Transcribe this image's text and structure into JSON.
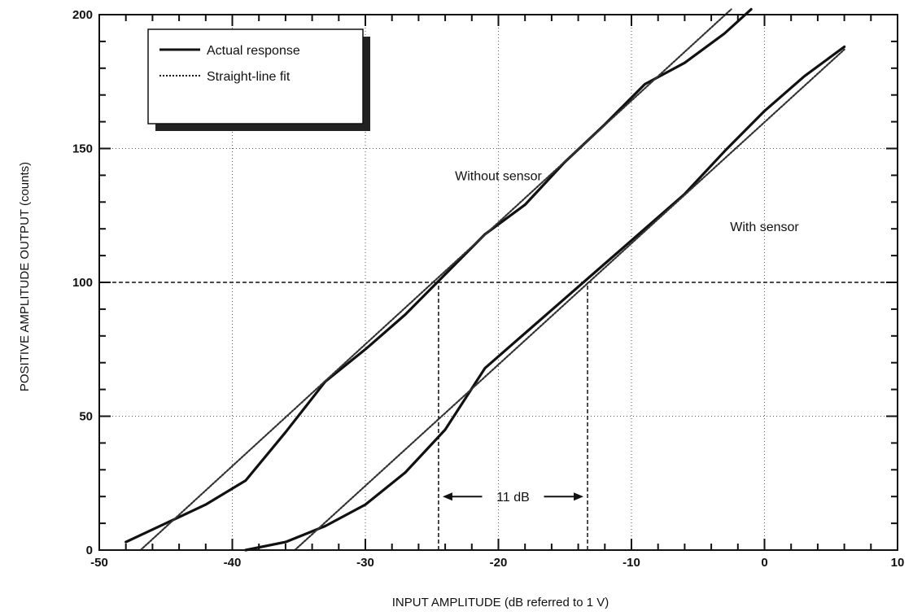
{
  "chart_data": {
    "type": "line",
    "xlabel": "INPUT AMPLITUDE (dB referred to 1 V)",
    "ylabel": "POSITIVE AMPLITUDE OUTPUT (counts)",
    "xlim": [
      -50,
      10
    ],
    "ylim": [
      0,
      200
    ],
    "xticks": [
      -50,
      -40,
      -30,
      -20,
      -10,
      0,
      10
    ],
    "yticks": [
      0,
      50,
      100,
      150,
      200
    ],
    "grid": true,
    "legend": {
      "placement": "top-left",
      "entries": [
        {
          "label": "Actual response",
          "style": "solid"
        },
        {
          "label": "Straight-line fit",
          "style": "dotted"
        }
      ]
    },
    "series": [
      {
        "style": "solid",
        "x": [
          -48,
          -45,
          -42,
          -39,
          -36,
          -33,
          -30,
          -27,
          -24,
          -21,
          -18,
          -15,
          -12,
          -9,
          -6,
          -3,
          -1
        ],
        "y": [
          3,
          10,
          17,
          26,
          44,
          63,
          75,
          88,
          103,
          118,
          129,
          145,
          159,
          174,
          182,
          193,
          202
        ]
      },
      {
        "style": "dotted",
        "x": [
          -46.9,
          -2.5
        ],
        "y": [
          0,
          202
        ]
      },
      {
        "style": "solid",
        "x": [
          -39,
          -36,
          -33,
          -30,
          -27,
          -24,
          -21,
          -18,
          -15,
          -12,
          -9,
          -6,
          -3,
          0,
          3,
          6
        ],
        "y": [
          0,
          3,
          9,
          17,
          29,
          45,
          68,
          81,
          94,
          107,
          120,
          133,
          149,
          164,
          177,
          188
        ]
      },
      {
        "style": "dotted",
        "x": [
          -35.3,
          6
        ],
        "y": [
          0,
          187
        ]
      }
    ],
    "reference_lines": [
      {
        "type": "horizontal",
        "y": 100
      },
      {
        "type": "vertical",
        "x": -24.5,
        "y_to": 100
      },
      {
        "type": "vertical",
        "x": -13.3,
        "y_to": 100
      }
    ],
    "annotations": [
      {
        "text": "Without sensor",
        "x": -20,
        "y": 140
      },
      {
        "text": "With sensor",
        "x": 0,
        "y": 121
      },
      {
        "text": "11 dB",
        "x": -18.9,
        "y": 20
      }
    ]
  }
}
